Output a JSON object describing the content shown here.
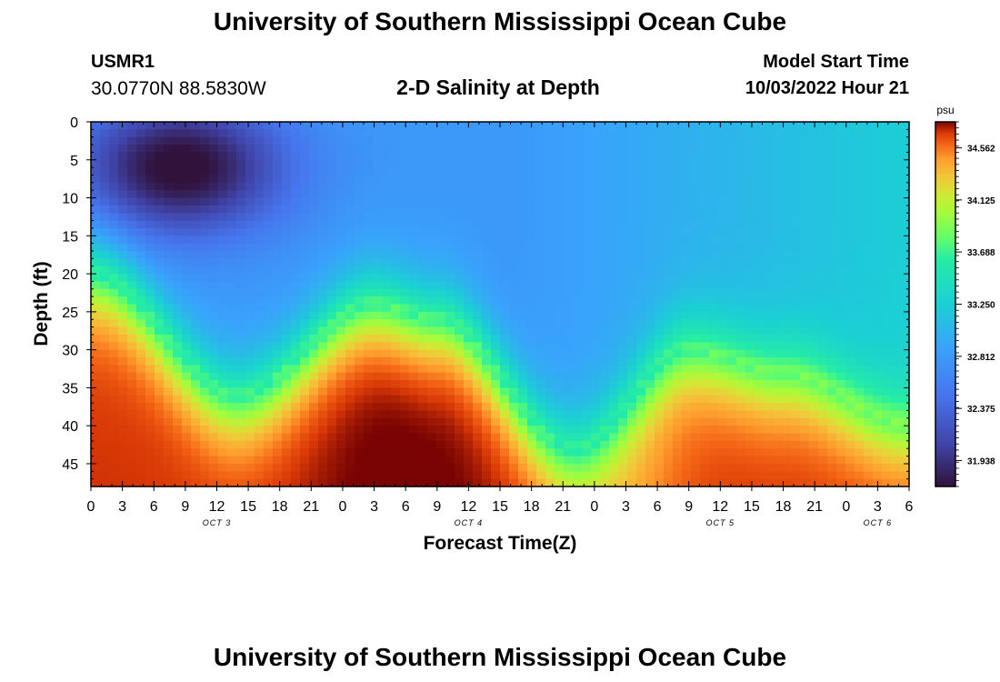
{
  "header": {
    "title": "University of Southern Mississippi Ocean Cube",
    "station_id": "USMR1",
    "coords": "30.0770N  88.5830W",
    "plot_title": "2-D Salinity at Depth",
    "start_label": "Model Start Time",
    "start_value": "10/03/2022 Hour 21"
  },
  "footer": {
    "title": "University of Southern Mississippi Ocean Cube"
  },
  "chart_data": {
    "type": "heatmap",
    "xlabel": "Forecast Time(Z)",
    "ylabel": "Depth (ft)",
    "x_range_hours": [
      0,
      78
    ],
    "x_ticks": [
      "0",
      "3",
      "6",
      "9",
      "12",
      "15",
      "18",
      "21",
      "0",
      "3",
      "6",
      "9",
      "12",
      "15",
      "18",
      "21",
      "0",
      "3",
      "6",
      "9",
      "12",
      "15",
      "18",
      "21",
      "0",
      "3",
      "6"
    ],
    "day_labels": [
      {
        "label": "OCT 3",
        "hour": 12
      },
      {
        "label": "OCT 4",
        "hour": 36
      },
      {
        "label": "OCT 5",
        "hour": 60
      },
      {
        "label": "OCT 6",
        "hour": 75
      }
    ],
    "y_range_ft": [
      0,
      48
    ],
    "y_ticks": [
      0,
      5,
      10,
      15,
      20,
      25,
      30,
      35,
      40,
      45
    ],
    "y_inverted": true,
    "colorbar": {
      "unit": "psu",
      "min": 31.72,
      "max": 34.78,
      "ticks": [
        "34.562",
        "34.125",
        "33.688",
        "33.250",
        "32.812",
        "32.375",
        "31.938"
      ]
    },
    "salinity_summary": {
      "freshest_region": {
        "hours": [
          3,
          14
        ],
        "depth_ft": [
          0,
          12
        ],
        "psu": 31.75
      },
      "surface_far_end_psu": 33.25,
      "halocline_depth_ft": {
        "hour_0": 20,
        "hour_14": 36,
        "hour_27": 24,
        "hour_33": 26,
        "hour_46": 43,
        "hour_57": 30,
        "hour_66": 33,
        "hour_78": 40
      },
      "bottom_psu": 34.7
    },
    "grid": false
  }
}
